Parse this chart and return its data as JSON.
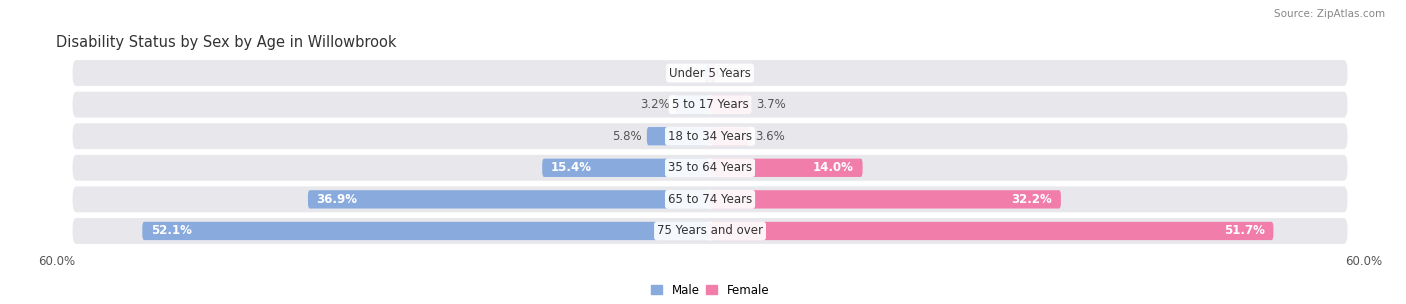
{
  "title": "Disability Status by Sex by Age in Willowbrook",
  "source": "Source: ZipAtlas.com",
  "categories": [
    "Under 5 Years",
    "5 to 17 Years",
    "18 to 34 Years",
    "35 to 64 Years",
    "65 to 74 Years",
    "75 Years and over"
  ],
  "male_values": [
    0.0,
    3.2,
    5.8,
    15.4,
    36.9,
    52.1
  ],
  "female_values": [
    0.0,
    3.7,
    3.6,
    14.0,
    32.2,
    51.7
  ],
  "male_color": "#88AADD",
  "female_color": "#F07DAA",
  "row_bg_color": "#E8E8EC",
  "axis_max": 60.0,
  "bar_height": 0.58,
  "label_fontsize": 8.5,
  "title_fontsize": 10.5,
  "inside_label_threshold": 8.0
}
